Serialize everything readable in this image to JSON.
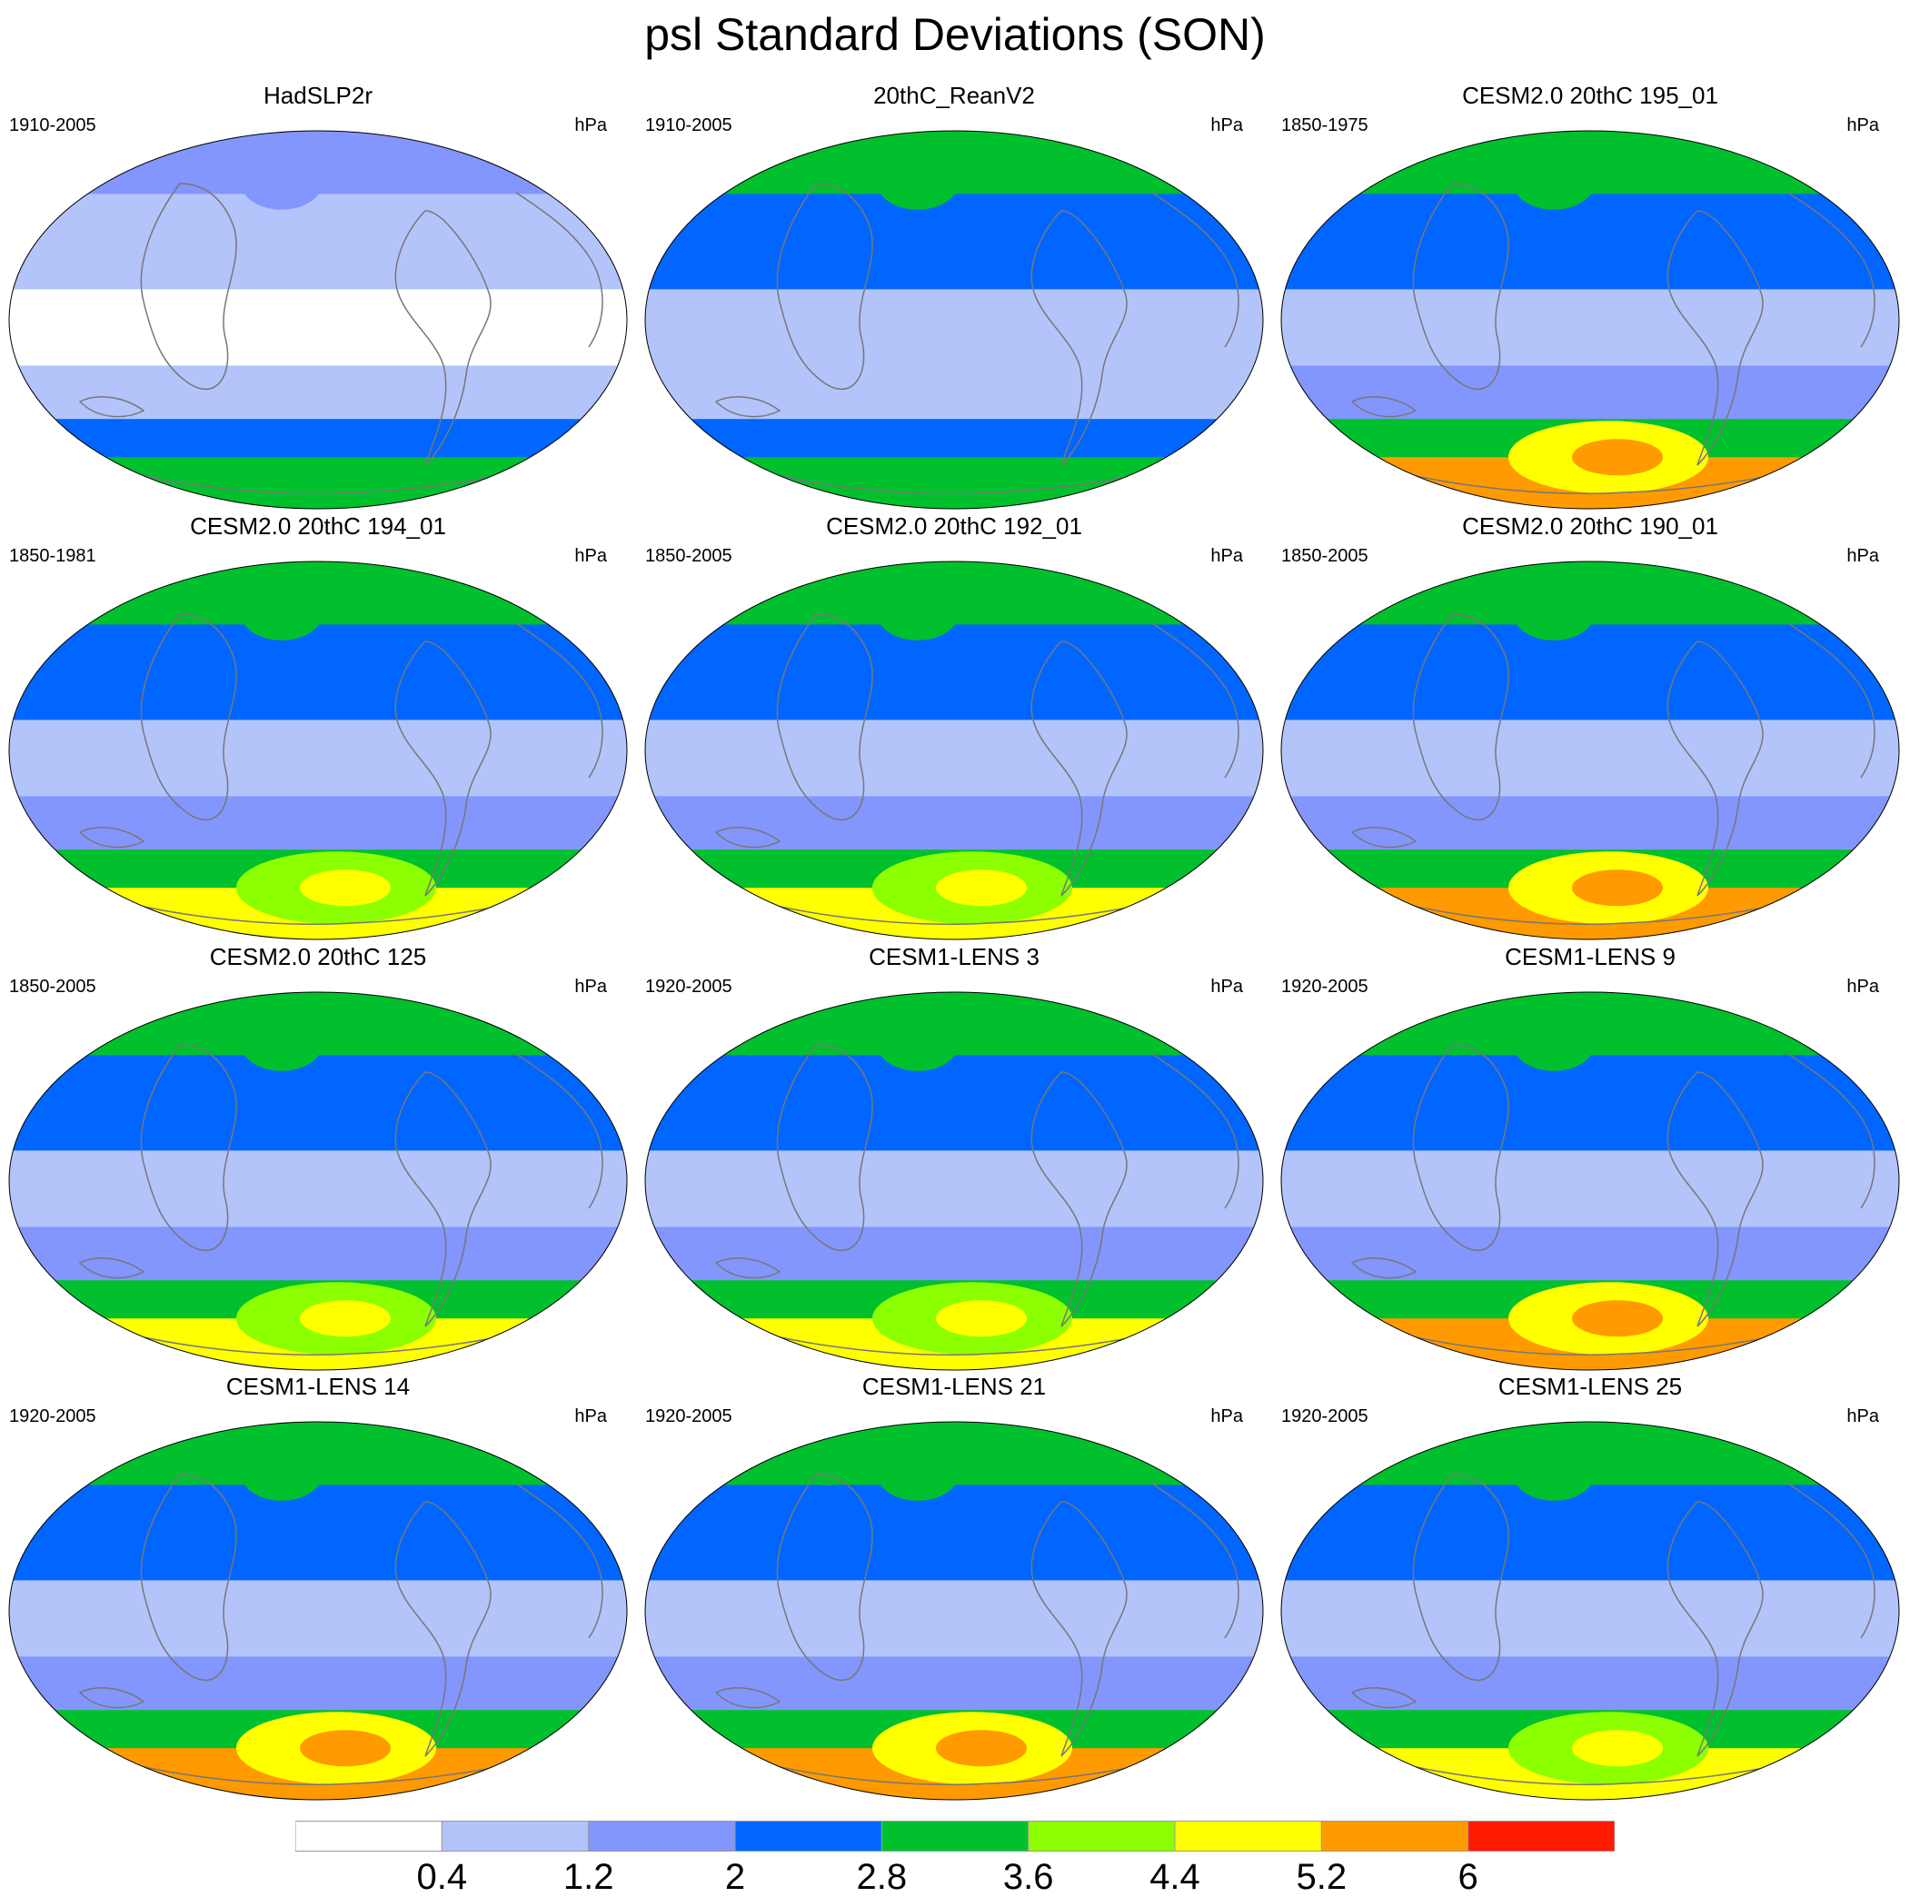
{
  "title": "psl Standard Deviations (SON)",
  "unit_label": "hPa",
  "colorbar": {
    "levels": [
      0.4,
      1.2,
      2,
      2.8,
      3.6,
      4.4,
      5.2,
      6
    ],
    "tick_labels": [
      "0.4",
      "1.2",
      "2",
      "2.8",
      "3.6",
      "4.4",
      "5.2",
      "6"
    ],
    "colors": [
      "#ffffff",
      "#b3c4fb",
      "#8396fd",
      "#0066ff",
      "#00c12d",
      "#8cff00",
      "#ffff00",
      "#ff9a00",
      "#ff1a00"
    ]
  },
  "panels": [
    {
      "title": "HadSLP2r",
      "years": "1910-2005",
      "zones": [
        2,
        1,
        0,
        1,
        3,
        4
      ]
    },
    {
      "title": "20thC_ReanV2",
      "years": "1910-2005",
      "zones": [
        4,
        3,
        1,
        1,
        3,
        4
      ]
    },
    {
      "title": "CESM2.0 20thC 195_01",
      "years": "1850-1975",
      "zones": [
        4,
        3,
        1,
        2,
        4,
        7
      ]
    },
    {
      "title": "CESM2.0 20thC 194_01",
      "years": "1850-1981",
      "zones": [
        4,
        3,
        1,
        2,
        4,
        6
      ]
    },
    {
      "title": "CESM2.0 20thC 192_01",
      "years": "1850-2005",
      "zones": [
        4,
        3,
        1,
        2,
        4,
        6
      ]
    },
    {
      "title": "CESM2.0 20thC 190_01",
      "years": "1850-2005",
      "zones": [
        4,
        3,
        1,
        2,
        4,
        7
      ]
    },
    {
      "title": "CESM2.0 20thC 125",
      "years": "1850-2005",
      "zones": [
        4,
        3,
        1,
        2,
        4,
        6
      ]
    },
    {
      "title": "CESM1-LENS 3",
      "years": "1920-2005",
      "zones": [
        4,
        3,
        1,
        2,
        4,
        6
      ]
    },
    {
      "title": "CESM1-LENS 9",
      "years": "1920-2005",
      "zones": [
        4,
        3,
        1,
        2,
        4,
        7
      ]
    },
    {
      "title": "CESM1-LENS 14",
      "years": "1920-2005",
      "zones": [
        4,
        3,
        1,
        2,
        4,
        7
      ]
    },
    {
      "title": "CESM1-LENS 21",
      "years": "1920-2005",
      "zones": [
        4,
        3,
        1,
        2,
        4,
        7
      ]
    },
    {
      "title": "CESM1-LENS 25",
      "years": "1920-2005",
      "zones": [
        4,
        3,
        1,
        2,
        4,
        6
      ]
    }
  ]
}
